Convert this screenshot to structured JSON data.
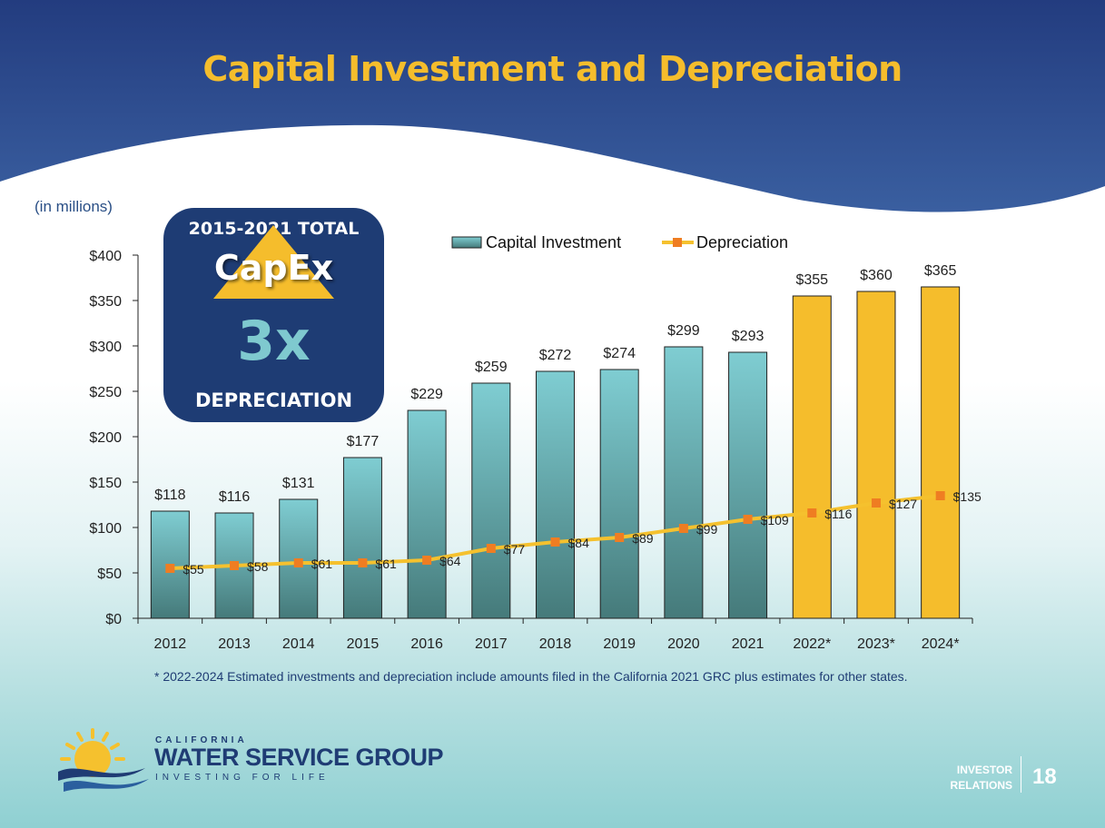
{
  "slide": {
    "title": "Capital Investment and Depreciation",
    "units_note": "(in millions)",
    "footnote": "* 2022-2024 Estimated investments and depreciation include amounts filed in the California 2021 GRC plus estimates for other states.",
    "page_number": "18",
    "footer_label_line1": "INVESTOR",
    "footer_label_line2": "RELATIONS"
  },
  "callout": {
    "heading": "2015-2021 TOTAL",
    "word": "CapEx",
    "multiplier": "3x",
    "footer": "DEPRECIATION",
    "box_color": "#1e3c74",
    "multiplier_color": "#7fc9cf",
    "arrow_color": "#f5bd2c"
  },
  "logo": {
    "pre": "CALIFORNIA",
    "name": "WATER SERVICE GROUP",
    "tagline": "INVESTING FOR LIFE"
  },
  "colors": {
    "header_navy": "#273f80",
    "title_gold": "#f5bd2c",
    "actual_bar_top": "#7fcdd2",
    "actual_bar_bottom": "#457a7a",
    "estimate_bar": "#f5bd2c",
    "depreciation_line": "#f5c12e",
    "depreciation_marker": "#ef7d22"
  },
  "chart_data": {
    "type": "bar",
    "categories": [
      "2012",
      "2013",
      "2014",
      "2015",
      "2016",
      "2017",
      "2018",
      "2019",
      "2020",
      "2021",
      "2022*",
      "2023*",
      "2024*"
    ],
    "series": [
      {
        "name": "Capital Investment",
        "type": "bar",
        "values": [
          118,
          116,
          131,
          177,
          229,
          259,
          272,
          274,
          299,
          293,
          355,
          360,
          365
        ],
        "labels": [
          "$118",
          "$116",
          "$131",
          "$177",
          "$229",
          "$259",
          "$272",
          "$274",
          "$299",
          "$293",
          "$355",
          "$360",
          "$365"
        ],
        "estimated_from_index": 10
      },
      {
        "name": "Depreciation",
        "type": "line",
        "values": [
          55,
          58,
          61,
          61,
          64,
          77,
          84,
          89,
          99,
          109,
          116,
          127,
          135
        ],
        "labels": [
          "$55",
          "$58",
          "$61",
          "$61",
          "$64",
          "$77",
          "$84",
          "$89",
          "$99",
          "$109",
          "$116",
          "$127",
          "$135"
        ]
      }
    ],
    "ylim": [
      0,
      400
    ],
    "yticks": [
      0,
      50,
      100,
      150,
      200,
      250,
      300,
      350,
      400
    ],
    "ytick_labels": [
      "$0",
      "$50",
      "$100",
      "$150",
      "$200",
      "$250",
      "$300",
      "$350",
      "$400"
    ],
    "legend_position": "top-center",
    "grid": false
  }
}
